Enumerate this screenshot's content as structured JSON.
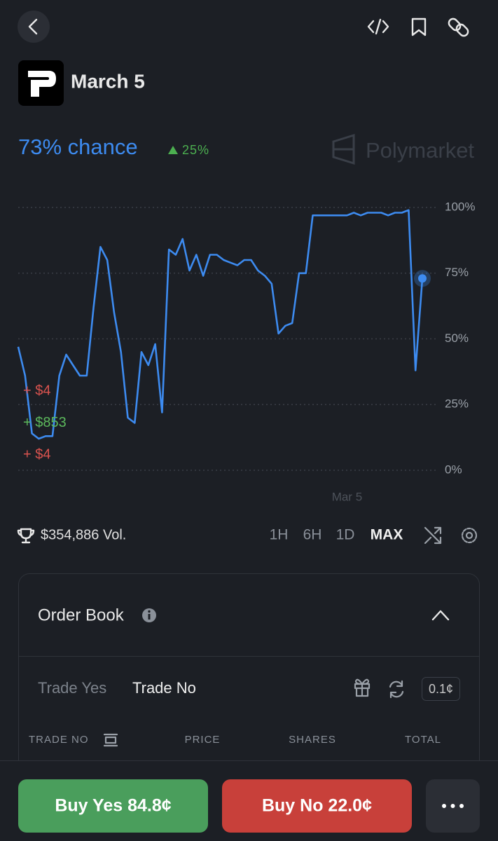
{
  "header": {
    "title": "March 5"
  },
  "market": {
    "chance": "73% chance",
    "change": "25%",
    "brand": "Polymarket"
  },
  "chart_data": {
    "type": "line",
    "color": "#3d8bf0",
    "categories": [
      null,
      null,
      null,
      null,
      null,
      null,
      null,
      null,
      null,
      null,
      null,
      null,
      null,
      null,
      null,
      null,
      null,
      null,
      null,
      null,
      null,
      null,
      null,
      null,
      null,
      null,
      null,
      null,
      null,
      null,
      null,
      null,
      null,
      null,
      null,
      null,
      null,
      null,
      null,
      null,
      null,
      null,
      null,
      null,
      null,
      null,
      null,
      null,
      "Mar 5",
      null,
      null,
      null,
      null,
      null,
      null,
      null,
      null,
      null,
      null,
      null
    ],
    "values": [
      47,
      36,
      14,
      12,
      13,
      13,
      36,
      44,
      40,
      36,
      36,
      62,
      85,
      80,
      60,
      45,
      20,
      18,
      45,
      40,
      48,
      22,
      84,
      82,
      88,
      76,
      82,
      74,
      82,
      82,
      80,
      79,
      78,
      80,
      80,
      76,
      74,
      71,
      52,
      55,
      56,
      75,
      75,
      97,
      97,
      97,
      97,
      97,
      97,
      98,
      97,
      98,
      98,
      98,
      97,
      98,
      98,
      99,
      38,
      73
    ],
    "ylim": [
      0,
      100
    ],
    "yticks": [
      {
        "value": 0,
        "label": "0%"
      },
      {
        "value": 25,
        "label": "25%"
      },
      {
        "value": 50,
        "label": "50%"
      },
      {
        "value": 75,
        "label": "75%"
      },
      {
        "value": 100,
        "label": "100%"
      }
    ],
    "grid": true,
    "annotations": [
      {
        "text": "+ $4",
        "color": "#d9534f"
      },
      {
        "text": "+ $853",
        "color": "#5cb85c"
      },
      {
        "text": "+ $4",
        "color": "#d9534f"
      }
    ]
  },
  "stats": {
    "volume": "$354,886 Vol.",
    "ranges": [
      "1H",
      "6H",
      "1D",
      "MAX"
    ]
  },
  "order_book": {
    "title": "Order Book",
    "tabs": [
      "Trade Yes",
      "Trade No"
    ],
    "tick_size": "0.1¢",
    "columns": [
      "TRADE NO",
      "PRICE",
      "SHARES",
      "TOTAL"
    ]
  },
  "actions": {
    "buy_yes": "Buy Yes 84.8¢",
    "buy_no": "Buy No 22.0¢"
  }
}
